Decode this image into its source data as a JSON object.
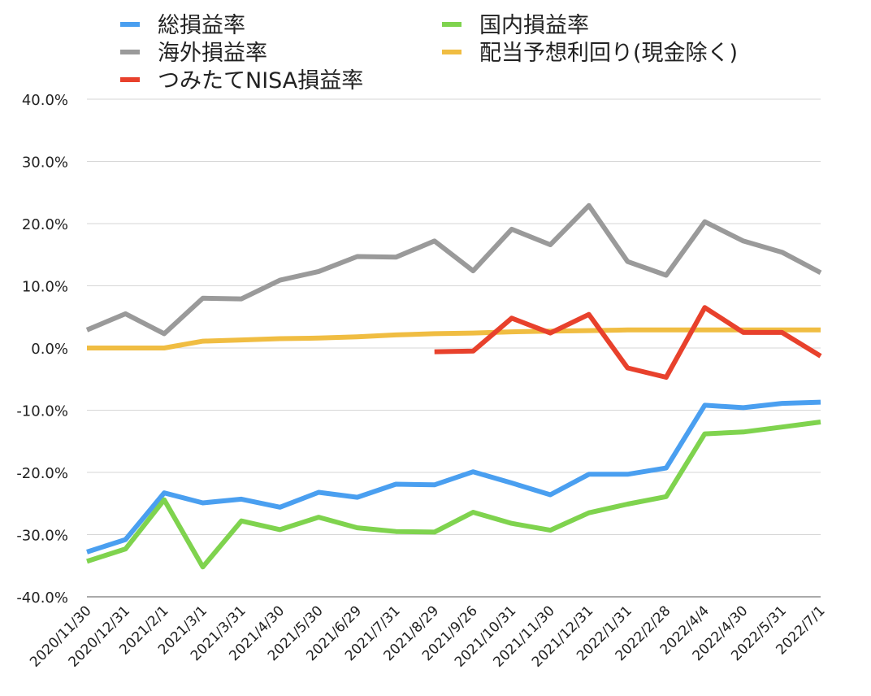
{
  "chart_data": {
    "type": "line",
    "ylim": [
      -0.4,
      0.4
    ],
    "y_ticks": [
      "40.0%",
      "30.0%",
      "20.0%",
      "10.0%",
      "0.0%",
      "-10.0%",
      "-20.0%",
      "-30.0%",
      "-40.0%"
    ],
    "grid": true,
    "legend_position": "top",
    "categories": [
      "2020/11/30",
      "2020/12/31",
      "2021/2/1",
      "2021/3/1",
      "2021/3/31",
      "2021/4/30",
      "2021/5/30",
      "2021/6/29",
      "2021/7/31",
      "2021/8/29",
      "2021/9/26",
      "2021/10/31",
      "2021/11/30",
      "2021/12/31",
      "2022/1/31",
      "2022/2/28",
      "2022/4/4",
      "2022/4/30",
      "2022/5/31",
      "2022/7/1"
    ],
    "series": [
      {
        "name": "総損益率",
        "color": "#4a9ff0",
        "values": [
          -0.328,
          -0.308,
          -0.233,
          -0.249,
          -0.243,
          -0.256,
          -0.232,
          -0.24,
          -0.219,
          -0.22,
          -0.199,
          -0.217,
          -0.236,
          -0.203,
          -0.203,
          -0.193,
          -0.092,
          -0.096,
          -0.089,
          -0.087
        ]
      },
      {
        "name": "国内損益率",
        "color": "#7fd34e",
        "values": [
          -0.343,
          -0.323,
          -0.244,
          -0.352,
          -0.278,
          -0.292,
          -0.272,
          -0.289,
          -0.295,
          -0.296,
          -0.264,
          -0.282,
          -0.293,
          -0.265,
          -0.251,
          -0.239,
          -0.138,
          -0.135,
          -0.127,
          -0.119
        ]
      },
      {
        "name": "海外損益率",
        "color": "#9a9a9a",
        "values": [
          0.029,
          0.055,
          0.023,
          0.08,
          0.079,
          0.109,
          0.123,
          0.147,
          0.146,
          0.172,
          0.124,
          0.191,
          0.166,
          0.229,
          0.139,
          0.117,
          0.203,
          0.172,
          0.154,
          0.121
        ]
      },
      {
        "name": "配当予想利回り(現金除く)",
        "color": "#f0bd42",
        "values": [
          0.0,
          0.0,
          0.0,
          0.011,
          0.013,
          0.015,
          0.016,
          0.018,
          0.021,
          0.023,
          0.024,
          0.026,
          0.027,
          0.028,
          0.029,
          0.029,
          0.029,
          0.029,
          0.029,
          0.029
        ]
      },
      {
        "name": "つみたてNISA損益率",
        "color": "#e8412c",
        "values": [
          null,
          null,
          null,
          null,
          null,
          null,
          null,
          null,
          null,
          -0.006,
          -0.005,
          0.048,
          0.024,
          0.054,
          -0.032,
          -0.047,
          0.065,
          0.025,
          0.025,
          -0.013
        ]
      }
    ]
  }
}
